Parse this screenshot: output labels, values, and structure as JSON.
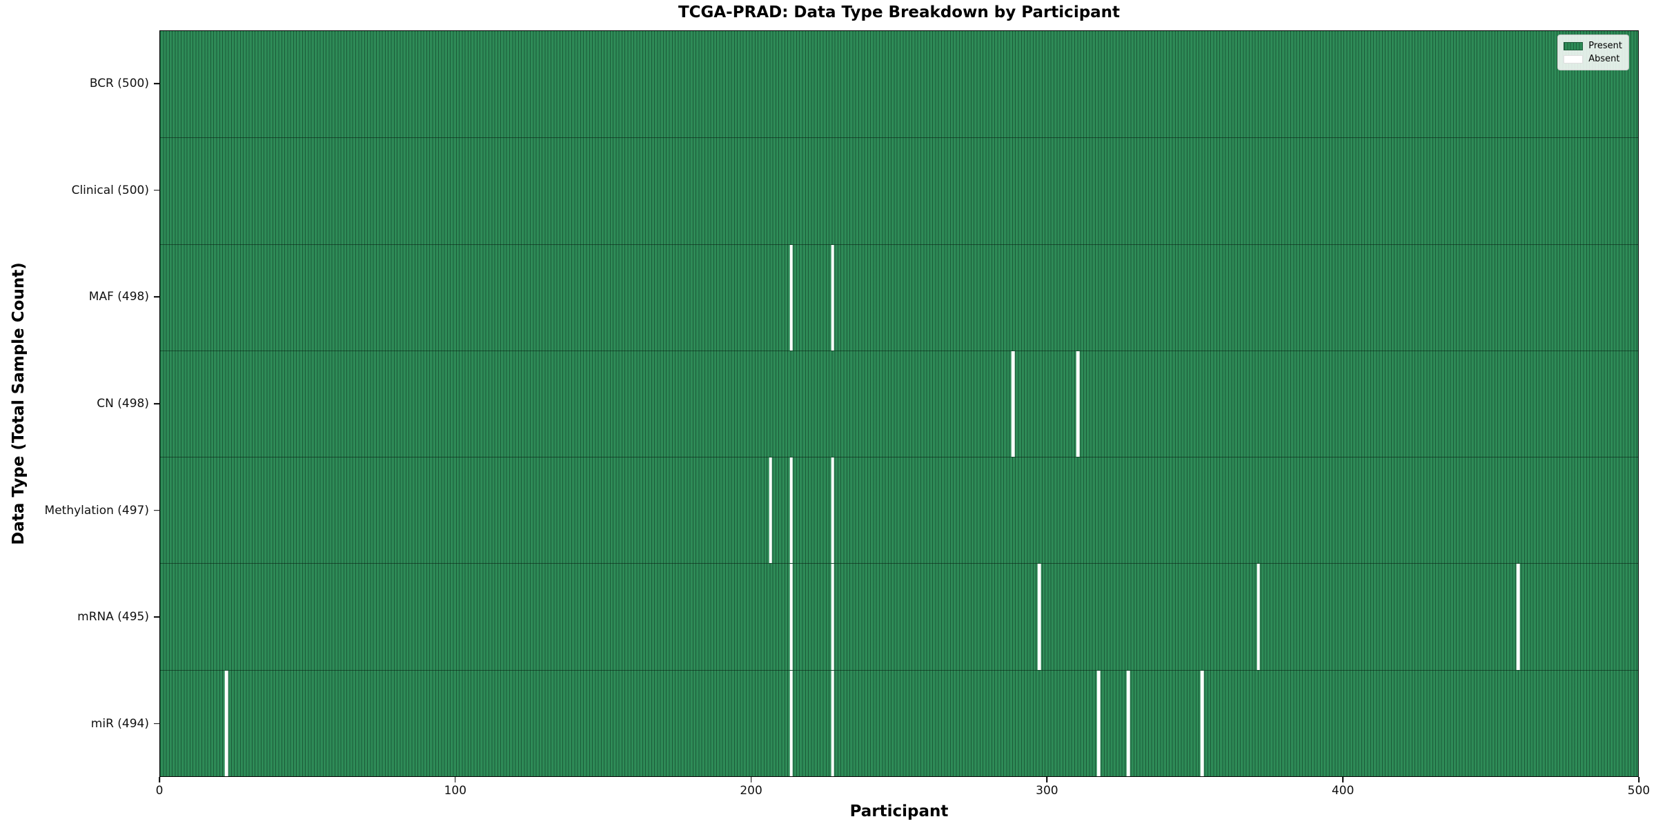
{
  "title": "TCGA-PRAD: Data Type Breakdown by Participant",
  "legend": {
    "present_label": "Present",
    "absent_label": "Absent"
  },
  "colors": {
    "present": "#2e8b57",
    "absent": "#ffffff",
    "bar_edge": "rgba(8,42,26,0.5)",
    "background": "#ffffff",
    "text": "#000000"
  },
  "chart_data": {
    "type": "heatmap",
    "title": "TCGA-PRAD: Data Type Breakdown by Participant",
    "xlabel": "Participant",
    "ylabel": "Data Type (Total Sample Count)",
    "xlim": [
      0,
      500
    ],
    "x_ticks": [
      0,
      100,
      200,
      300,
      400,
      500
    ],
    "grid": false,
    "legend_labels": [
      "Present",
      "Absent"
    ],
    "legend_position": "upper right",
    "cell_states": {
      "present": 1,
      "absent": 0
    },
    "rows": [
      {
        "label": "BCR (500)",
        "data_type": "BCR",
        "total": 500,
        "absent_participants": []
      },
      {
        "label": "Clinical (500)",
        "data_type": "Clinical",
        "total": 500,
        "absent_participants": []
      },
      {
        "label": "MAF (498)",
        "data_type": "MAF",
        "total": 498,
        "absent_participants": [
          213,
          227
        ]
      },
      {
        "label": "CN (498)",
        "data_type": "CN",
        "total": 498,
        "absent_participants": [
          288,
          310
        ]
      },
      {
        "label": "Methylation (497)",
        "data_type": "Methylation",
        "total": 497,
        "absent_participants": [
          206,
          213,
          227
        ]
      },
      {
        "label": "mRNA (495)",
        "data_type": "mRNA",
        "total": 495,
        "absent_participants": [
          213,
          227,
          297,
          371,
          459
        ]
      },
      {
        "label": "miR (494)",
        "data_type": "miR",
        "total": 494,
        "absent_participants": [
          22,
          213,
          227,
          317,
          327,
          352
        ]
      }
    ]
  }
}
